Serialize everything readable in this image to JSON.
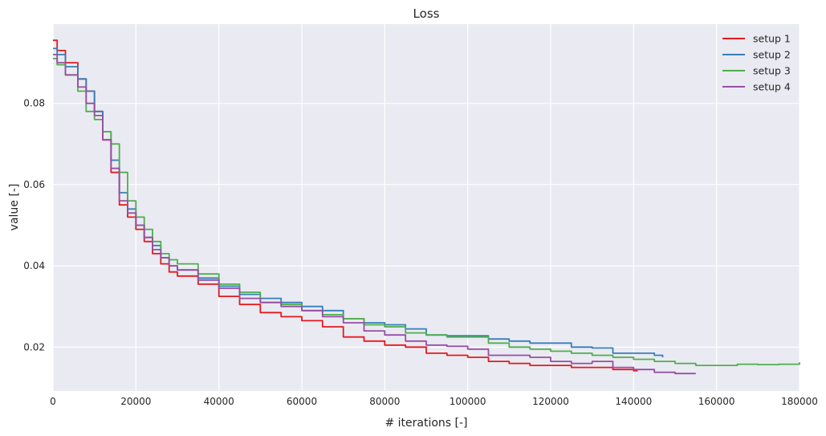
{
  "chart_data": {
    "type": "line",
    "title": "Loss",
    "xlabel": "# iterations [-]",
    "ylabel": "value [-]",
    "xlim": [
      0,
      180000
    ],
    "ylim": [
      0.0092,
      0.0995
    ],
    "xticks": [
      0,
      20000,
      40000,
      60000,
      80000,
      100000,
      120000,
      140000,
      160000,
      180000
    ],
    "xtick_labels": [
      "0",
      "20000",
      "40000",
      "60000",
      "80000",
      "100000",
      "120000",
      "140000",
      "160000",
      "180000"
    ],
    "yticks": [
      0.02,
      0.04,
      0.06,
      0.08
    ],
    "ytick_labels": [
      "0.02",
      "0.04",
      "0.06",
      "0.08"
    ],
    "grid": true,
    "legend_position": "top-right",
    "background": "#eaeaf2",
    "series": [
      {
        "name": "setup 1",
        "color": "#e41a1c",
        "x": [
          0,
          1000,
          3000,
          6000,
          8000,
          10000,
          12000,
          14000,
          16000,
          18000,
          20000,
          22000,
          24000,
          26000,
          28000,
          30000,
          35000,
          40000,
          45000,
          50000,
          55000,
          60000,
          65000,
          70000,
          75000,
          80000,
          85000,
          90000,
          95000,
          100000,
          105000,
          110000,
          115000,
          120000,
          125000,
          130000,
          135000,
          140000,
          141000
        ],
        "y": [
          0.0955,
          0.093,
          0.09,
          0.086,
          0.083,
          0.078,
          0.071,
          0.063,
          0.055,
          0.052,
          0.049,
          0.046,
          0.043,
          0.0405,
          0.0385,
          0.0375,
          0.0355,
          0.0325,
          0.0305,
          0.0285,
          0.0275,
          0.0265,
          0.025,
          0.0225,
          0.0215,
          0.0205,
          0.02,
          0.0185,
          0.018,
          0.0175,
          0.0165,
          0.016,
          0.0155,
          0.0155,
          0.015,
          0.015,
          0.0145,
          0.0142,
          0.0142
        ]
      },
      {
        "name": "setup 2",
        "color": "#377eb8",
        "x": [
          0,
          1000,
          3000,
          6000,
          8000,
          10000,
          12000,
          14000,
          16000,
          18000,
          20000,
          22000,
          24000,
          26000,
          28000,
          30000,
          35000,
          40000,
          45000,
          50000,
          55000,
          60000,
          65000,
          70000,
          75000,
          80000,
          85000,
          90000,
          95000,
          100000,
          105000,
          110000,
          115000,
          120000,
          125000,
          130000,
          135000,
          140000,
          145000,
          147000
        ],
        "y": [
          0.0935,
          0.092,
          0.089,
          0.086,
          0.083,
          0.078,
          0.073,
          0.066,
          0.058,
          0.054,
          0.05,
          0.047,
          0.045,
          0.042,
          0.04,
          0.039,
          0.037,
          0.035,
          0.033,
          0.032,
          0.031,
          0.03,
          0.029,
          0.027,
          0.026,
          0.0255,
          0.0245,
          0.023,
          0.0228,
          0.0228,
          0.022,
          0.0215,
          0.021,
          0.021,
          0.02,
          0.0198,
          0.0185,
          0.0185,
          0.018,
          0.0175
        ]
      },
      {
        "name": "setup 3",
        "color": "#4daf4a",
        "x": [
          0,
          1000,
          3000,
          6000,
          8000,
          10000,
          12000,
          14000,
          16000,
          18000,
          20000,
          22000,
          24000,
          26000,
          28000,
          30000,
          35000,
          40000,
          45000,
          50000,
          55000,
          60000,
          65000,
          70000,
          75000,
          80000,
          85000,
          90000,
          95000,
          100000,
          105000,
          110000,
          115000,
          120000,
          125000,
          130000,
          135000,
          140000,
          145000,
          150000,
          155000,
          160000,
          165000,
          170000,
          175000,
          180000
        ],
        "y": [
          0.091,
          0.0895,
          0.087,
          0.083,
          0.078,
          0.076,
          0.073,
          0.07,
          0.063,
          0.056,
          0.052,
          0.049,
          0.046,
          0.043,
          0.0415,
          0.0405,
          0.038,
          0.0355,
          0.0335,
          0.031,
          0.0305,
          0.029,
          0.028,
          0.027,
          0.0255,
          0.025,
          0.0235,
          0.023,
          0.0225,
          0.0225,
          0.021,
          0.02,
          0.0195,
          0.019,
          0.0185,
          0.018,
          0.0175,
          0.017,
          0.0165,
          0.016,
          0.0155,
          0.0155,
          0.0158,
          0.0157,
          0.0158,
          0.0163
        ]
      },
      {
        "name": "setup 4",
        "color": "#984ea3",
        "x": [
          0,
          1000,
          3000,
          6000,
          8000,
          10000,
          12000,
          14000,
          16000,
          18000,
          20000,
          22000,
          24000,
          26000,
          28000,
          30000,
          35000,
          40000,
          45000,
          50000,
          55000,
          60000,
          65000,
          70000,
          75000,
          80000,
          85000,
          90000,
          95000,
          100000,
          105000,
          110000,
          115000,
          120000,
          125000,
          130000,
          135000,
          140000,
          145000,
          150000,
          155000
        ],
        "y": [
          0.092,
          0.09,
          0.087,
          0.084,
          0.08,
          0.077,
          0.071,
          0.064,
          0.056,
          0.053,
          0.05,
          0.047,
          0.044,
          0.042,
          0.04,
          0.039,
          0.0365,
          0.0345,
          0.032,
          0.031,
          0.03,
          0.029,
          0.0275,
          0.026,
          0.024,
          0.023,
          0.0215,
          0.0205,
          0.0202,
          0.0195,
          0.018,
          0.018,
          0.0175,
          0.0165,
          0.016,
          0.0165,
          0.015,
          0.0145,
          0.0138,
          0.0135,
          0.0135
        ]
      }
    ]
  }
}
